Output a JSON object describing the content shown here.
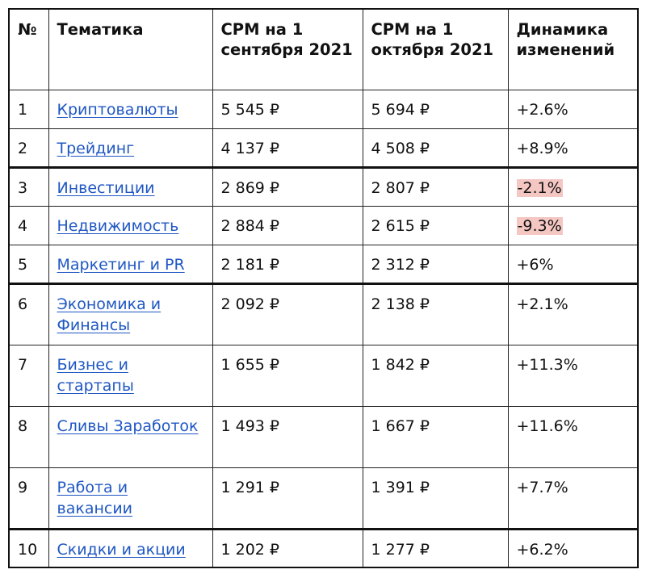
{
  "table": {
    "headers": {
      "num": "№",
      "topic": "Тематика",
      "cpm_sep": "CPM на 1 сентября 2021",
      "cpm_oct": "CPM на 1 октября 2021",
      "change": "Динамика изменений"
    },
    "highlight_color_negative": "#f4c7c3",
    "link_color": "#1f57c3",
    "rows": [
      {
        "num": "1",
        "topic": "Криптовалюты",
        "cpm_sep": "5 545 ₽",
        "cpm_oct": "5 694 ₽",
        "change": "+2.6%"
      },
      {
        "num": "2",
        "topic": "Трейдинг",
        "cpm_sep": "4 137 ₽",
        "cpm_oct": "4 508 ₽",
        "change": "+8.9%"
      },
      {
        "num": "3",
        "topic": "Инвестиции",
        "cpm_sep": "2 869 ₽",
        "cpm_oct": "2 807 ₽",
        "change": "-2.1%"
      },
      {
        "num": "4",
        "topic": "Недвижимость",
        "cpm_sep": "2 884 ₽",
        "cpm_oct": "2 615 ₽",
        "change": "-9.3%"
      },
      {
        "num": "5",
        "topic": "Маркетинг и PR",
        "cpm_sep": "2 181 ₽",
        "cpm_oct": "2 312 ₽",
        "change": "+6%"
      },
      {
        "num": "6",
        "topic": "Экономика и Финансы",
        "cpm_sep": "2 092 ₽",
        "cpm_oct": "2 138 ₽",
        "change": "+2.1%"
      },
      {
        "num": "7",
        "topic": "Бизнес и стартапы",
        "cpm_sep": "1 655 ₽",
        "cpm_oct": "1 842 ₽",
        "change": "+11.3%"
      },
      {
        "num": "8",
        "topic": "Сливы Заработок",
        "cpm_sep": "1 493 ₽",
        "cpm_oct": "1 667 ₽",
        "change": "+11.6%"
      },
      {
        "num": "9",
        "topic": "Работа и вакансии",
        "cpm_sep": "1 291 ₽",
        "cpm_oct": "1 391 ₽",
        "change": "+7.7%"
      },
      {
        "num": "10",
        "topic": "Скидки и акции",
        "cpm_sep": "1 202 ₽",
        "cpm_oct": "1 277 ₽",
        "change": "+6.2%"
      }
    ]
  }
}
